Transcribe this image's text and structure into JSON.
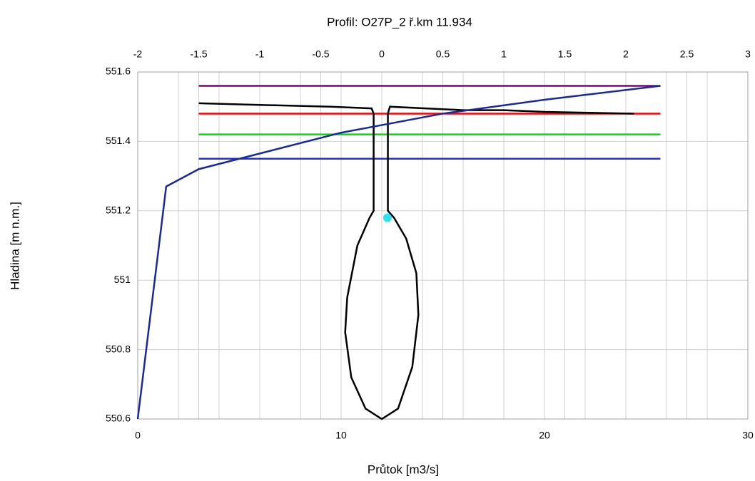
{
  "chart_data": {
    "type": "line",
    "title": "Profil: O27P_2  ř.km 11.934",
    "x_label": "Průtok [m3/s]",
    "y_label": "Hladina [m n.m.]",
    "xlim": [
      0,
      30
    ],
    "xticks": [
      0,
      10,
      20,
      30
    ],
    "xgrid": [
      0,
      2,
      4,
      6,
      8,
      10,
      12,
      14,
      16,
      18,
      20,
      22,
      24,
      26,
      28,
      30
    ],
    "x2lim": [
      -2,
      3
    ],
    "x2ticks": [
      -2,
      -1.5,
      -1,
      -0.5,
      0,
      0.5,
      1,
      1.5,
      2,
      2.5,
      3
    ],
    "ylim": [
      550.6,
      551.6
    ],
    "yticks": [
      550.6,
      550.8,
      551,
      551.2,
      551.4,
      551.6
    ],
    "grid": true,
    "series": [
      {
        "color": "#800080",
        "x": [
          3,
          25.7
        ],
        "values": [
          551.56,
          551.56
        ]
      },
      {
        "color": "#ff0000",
        "x": [
          3,
          25.7
        ],
        "values": [
          551.48,
          551.48
        ]
      },
      {
        "color": "#00e000",
        "x": [
          3,
          25.7
        ],
        "values": [
          551.42,
          551.42
        ]
      },
      {
        "color": "#2030e0",
        "x": [
          3,
          25.7
        ],
        "values": [
          551.35,
          551.35
        ]
      },
      {
        "color": "#000000",
        "x": [
          3,
          6,
          9.5,
          11.5,
          11.6,
          11.6,
          11.4,
          10.8,
          10.3,
          10.2,
          10.5,
          11.2,
          12,
          12.8,
          13.5,
          13.8,
          13.7,
          13.2,
          12.6,
          12.3,
          12.3,
          12.4,
          16,
          18,
          20,
          24.4
        ],
        "values": [
          551.51,
          551.505,
          551.5,
          551.495,
          551.48,
          551.2,
          551.18,
          551.1,
          550.95,
          550.85,
          550.72,
          550.63,
          550.6,
          550.63,
          550.75,
          550.9,
          551.02,
          551.12,
          551.18,
          551.2,
          551.48,
          551.5,
          551.49,
          551.49,
          551.485,
          551.48
        ]
      },
      {
        "color": "#1a2a9a",
        "x": [
          0,
          1.4,
          3,
          5,
          10,
          15,
          20,
          25.7
        ],
        "values": [
          550.6,
          551.27,
          551.32,
          551.35,
          551.425,
          551.48,
          551.52,
          551.56
        ]
      }
    ],
    "point": {
      "color": "#30e0f0",
      "x": 12.28,
      "value": 551.18
    }
  }
}
